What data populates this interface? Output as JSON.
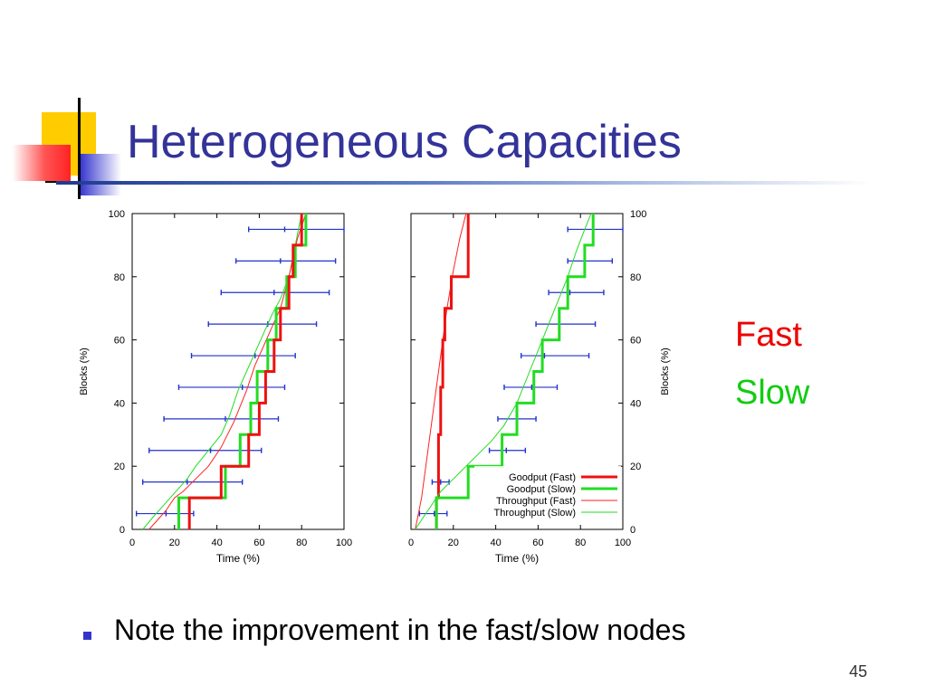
{
  "slide": {
    "title": "Heterogeneous Capacities",
    "side_legend": {
      "fast": {
        "label": "Fast",
        "color": "#ee0000"
      },
      "slow": {
        "label": "Slow",
        "color": "#11cc11"
      }
    },
    "bullet": "Note the improvement in the fast/slow nodes",
    "slide_number": "45",
    "colors": {
      "title": "#333399",
      "accent_blue": "#3333cc",
      "deco_yellow": "#ffcc00",
      "deco_red": "#ff3333"
    }
  },
  "chart_data": [
    {
      "type": "line",
      "xlabel": "Time (%)",
      "ylabel": "Blocks (%)",
      "xlim": [
        0,
        100
      ],
      "ylim": [
        0,
        100
      ],
      "xticks": [
        0,
        20,
        40,
        60,
        80,
        100
      ],
      "yticks": [
        0,
        20,
        40,
        60,
        80,
        100
      ],
      "y_axis_side": "left",
      "grid": false,
      "series": [
        {
          "key": "throughput_slow",
          "color": "#22dd22",
          "width": 1,
          "step": false,
          "points": [
            [
              5,
              0
            ],
            [
              10,
              4
            ],
            [
              14,
              7
            ],
            [
              18,
              10
            ],
            [
              22,
              13
            ],
            [
              26,
              16
            ],
            [
              30,
              20
            ],
            [
              36,
              25
            ],
            [
              42,
              30
            ],
            [
              46,
              36
            ],
            [
              50,
              44
            ],
            [
              54,
              50
            ],
            [
              58,
              56
            ],
            [
              62,
              62
            ],
            [
              66,
              68
            ],
            [
              70,
              73
            ],
            [
              74,
              80
            ],
            [
              77,
              90
            ],
            [
              80,
              100
            ]
          ]
        },
        {
          "key": "throughput_fast",
          "color": "#ff2222",
          "width": 1,
          "step": false,
          "points": [
            [
              8,
              0
            ],
            [
              12,
              3
            ],
            [
              16,
              6
            ],
            [
              20,
              10
            ],
            [
              24,
              12
            ],
            [
              30,
              16
            ],
            [
              36,
              20
            ],
            [
              42,
              26
            ],
            [
              48,
              34
            ],
            [
              54,
              44
            ],
            [
              58,
              52
            ],
            [
              62,
              58
            ],
            [
              66,
              64
            ],
            [
              70,
              70
            ],
            [
              74,
              80
            ],
            [
              78,
              92
            ],
            [
              82,
              100
            ]
          ]
        },
        {
          "key": "goodput_slow",
          "color": "#22dd22",
          "width": 3,
          "step": true,
          "points": [
            [
              22,
              0
            ],
            [
              22,
              10
            ],
            [
              44,
              10
            ],
            [
              44,
              20
            ],
            [
              51,
              20
            ],
            [
              51,
              30
            ],
            [
              56,
              30
            ],
            [
              56,
              40
            ],
            [
              59,
              40
            ],
            [
              59,
              50
            ],
            [
              64,
              50
            ],
            [
              64,
              60
            ],
            [
              68,
              60
            ],
            [
              68,
              70
            ],
            [
              73,
              70
            ],
            [
              73,
              80
            ],
            [
              77,
              80
            ],
            [
              77,
              90
            ],
            [
              82,
              90
            ],
            [
              82,
              100
            ]
          ]
        },
        {
          "key": "goodput_fast",
          "color": "#ee1111",
          "width": 3,
          "step": true,
          "points": [
            [
              27,
              0
            ],
            [
              27,
              10
            ],
            [
              42,
              10
            ],
            [
              42,
              20
            ],
            [
              55,
              20
            ],
            [
              55,
              30
            ],
            [
              60,
              30
            ],
            [
              60,
              40
            ],
            [
              63,
              40
            ],
            [
              63,
              50
            ],
            [
              67,
              50
            ],
            [
              67,
              60
            ],
            [
              70,
              60
            ],
            [
              70,
              70
            ],
            [
              74,
              70
            ],
            [
              74,
              80
            ],
            [
              76,
              80
            ],
            [
              76,
              90
            ],
            [
              80,
              90
            ],
            [
              80,
              100
            ]
          ]
        }
      ],
      "error_bars": {
        "color": "#2233cc",
        "rows": [
          {
            "y": 5,
            "low": 2,
            "mid": 16,
            "high": 29
          },
          {
            "y": 15,
            "low": 5,
            "mid": 26,
            "high": 52
          },
          {
            "y": 25,
            "low": 8,
            "mid": 37,
            "high": 61
          },
          {
            "y": 35,
            "low": 15,
            "mid": 44,
            "high": 69
          },
          {
            "y": 45,
            "low": 22,
            "mid": 52,
            "high": 72
          },
          {
            "y": 55,
            "low": 28,
            "mid": 58,
            "high": 77
          },
          {
            "y": 65,
            "low": 36,
            "mid": 64,
            "high": 87
          },
          {
            "y": 75,
            "low": 42,
            "mid": 67,
            "high": 93
          },
          {
            "y": 85,
            "low": 49,
            "mid": 70,
            "high": 96
          },
          {
            "y": 95,
            "low": 55,
            "mid": 72,
            "high": 100
          }
        ]
      }
    },
    {
      "type": "line",
      "xlabel": "Time (%)",
      "ylabel": "Blocks (%)",
      "xlim": [
        0,
        100
      ],
      "ylim": [
        0,
        100
      ],
      "xticks": [
        0,
        20,
        40,
        60,
        80,
        100
      ],
      "yticks": [
        0,
        20,
        40,
        60,
        80,
        100
      ],
      "y_axis_side": "right",
      "grid": false,
      "legend": {
        "position": "bottom-right",
        "entries": [
          {
            "label": "Goodput (Fast)",
            "color": "#ee1111",
            "width": 3
          },
          {
            "label": "Goodput (Slow)",
            "color": "#22dd22",
            "width": 3
          },
          {
            "label": "Throughput (Fast)",
            "color": "#ff2222",
            "width": 1
          },
          {
            "label": "Throughput (Slow)",
            "color": "#22dd22",
            "width": 1
          }
        ]
      },
      "series": [
        {
          "key": "throughput_fast",
          "color": "#ff2222",
          "width": 1,
          "step": false,
          "points": [
            [
              2,
              0
            ],
            [
              5,
              10
            ],
            [
              8,
              25
            ],
            [
              11,
              40
            ],
            [
              14,
              55
            ],
            [
              17,
              70
            ],
            [
              20,
              82
            ],
            [
              23,
              92
            ],
            [
              26,
              100
            ]
          ]
        },
        {
          "key": "goodput_fast",
          "color": "#ee1111",
          "width": 3,
          "step": true,
          "points": [
            [
              12,
              0
            ],
            [
              12,
              10
            ],
            [
              13,
              10
            ],
            [
              13,
              30
            ],
            [
              14,
              30
            ],
            [
              14,
              45
            ],
            [
              15,
              45
            ],
            [
              15,
              60
            ],
            [
              16,
              60
            ],
            [
              16,
              70
            ],
            [
              19,
              70
            ],
            [
              19,
              80
            ],
            [
              27,
              80
            ],
            [
              27,
              100
            ]
          ]
        },
        {
          "key": "throughput_slow",
          "color": "#22dd22",
          "width": 1,
          "step": false,
          "points": [
            [
              2,
              0
            ],
            [
              6,
              4
            ],
            [
              10,
              8
            ],
            [
              14,
              12
            ],
            [
              20,
              16
            ],
            [
              26,
              20
            ],
            [
              32,
              24
            ],
            [
              38,
              28
            ],
            [
              44,
              33
            ],
            [
              50,
              40
            ],
            [
              56,
              50
            ],
            [
              62,
              60
            ],
            [
              68,
              70
            ],
            [
              74,
              80
            ],
            [
              78,
              88
            ],
            [
              82,
              95
            ],
            [
              85,
              100
            ]
          ]
        },
        {
          "key": "goodput_slow",
          "color": "#22dd22",
          "width": 3,
          "step": true,
          "points": [
            [
              12,
              0
            ],
            [
              12,
              10
            ],
            [
              27,
              10
            ],
            [
              27,
              20
            ],
            [
              43,
              20
            ],
            [
              43,
              30
            ],
            [
              50,
              30
            ],
            [
              50,
              40
            ],
            [
              58,
              40
            ],
            [
              58,
              50
            ],
            [
              62,
              50
            ],
            [
              62,
              60
            ],
            [
              70,
              60
            ],
            [
              70,
              70
            ],
            [
              74,
              70
            ],
            [
              74,
              80
            ],
            [
              82,
              80
            ],
            [
              82,
              90
            ],
            [
              86,
              90
            ],
            [
              86,
              100
            ]
          ]
        }
      ],
      "error_bars": {
        "color": "#2233cc",
        "rows": [
          {
            "y": 5,
            "low": 4,
            "mid": 11,
            "high": 17
          },
          {
            "y": 15,
            "low": 10,
            "mid": 14,
            "high": 18
          },
          {
            "y": 25,
            "low": 37,
            "mid": 45,
            "high": 54
          },
          {
            "y": 35,
            "low": 41,
            "mid": 50,
            "high": 59
          },
          {
            "y": 45,
            "low": 44,
            "mid": 57,
            "high": 69
          },
          {
            "y": 55,
            "low": 52,
            "mid": 63,
            "high": 84
          },
          {
            "y": 65,
            "low": 59,
            "mid": 70,
            "high": 87
          },
          {
            "y": 75,
            "low": 65,
            "mid": 75,
            "high": 91
          },
          {
            "y": 85,
            "low": 74,
            "mid": 82,
            "high": 95
          },
          {
            "y": 95,
            "low": 74,
            "mid": 86,
            "high": 100
          }
        ]
      }
    }
  ]
}
